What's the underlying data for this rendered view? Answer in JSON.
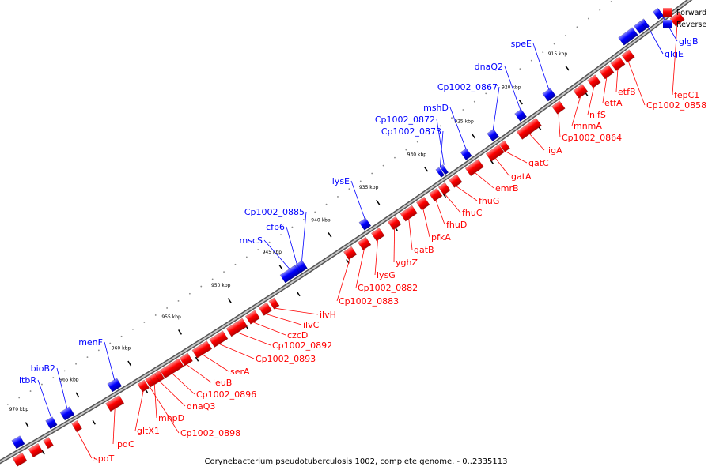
{
  "caption": "Corynebacterium pseudotuberculosis 1002, complete genome. - 0..2335113",
  "legend": [
    {
      "label": "Forward",
      "color": "#ff0000"
    },
    {
      "label": "Reverse",
      "color": "#0000ff"
    }
  ],
  "colors": {
    "forward": "#ff0000",
    "reverse": "#0000ff",
    "backbone": "#8c8c8c"
  },
  "ticks": [
    "915 kbp",
    "920 kbp",
    "925 kbp",
    "930 kbp",
    "935 kbp",
    "940 kbp",
    "945 kbp",
    "950 kbp",
    "955 kbp",
    "960 kbp",
    "965 kbp",
    "970 kbp"
  ],
  "reverse_genes": [
    "glgB",
    "glgE",
    "speE",
    "dnaQ2",
    "Cp1002_0867",
    "mshD",
    "Cp1002_0872",
    "Cp1002_0873",
    "lysE",
    "Cp1002_0885",
    "cfp6",
    "mscS",
    "menF",
    "bioB2",
    "ltbR"
  ],
  "forward_genes": [
    "fepC1",
    "Cp1002_0858",
    "etfB",
    "etfA",
    "nifS",
    "mnmA",
    "Cp1002_0864",
    "ligA",
    "gatC",
    "gatA",
    "emrB",
    "fhuG",
    "fhuC",
    "fhuD",
    "pfkA",
    "gatB",
    "yghZ",
    "lysG",
    "Cp1002_0882",
    "Cp1002_0883",
    "ilvH",
    "ilvC",
    "czcD",
    "Cp1002_0892",
    "Cp1002_0893",
    "serA",
    "leuB",
    "Cp1002_0896",
    "dnaQ3",
    "mhpD",
    "Cp1002_0898",
    "gltX1",
    "lpqC",
    "spoT"
  ]
}
